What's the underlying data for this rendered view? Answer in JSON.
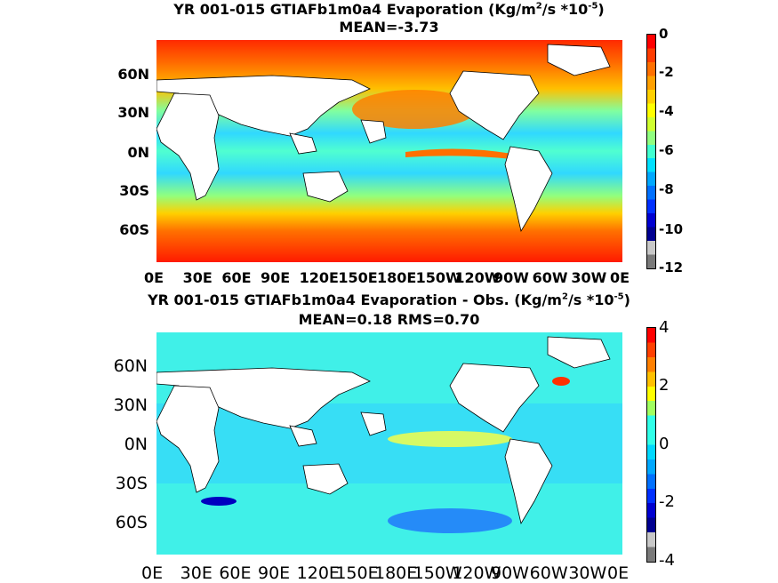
{
  "panels": [
    {
      "title_prefix": "YR 001-015 GTIAFb1m0a4  Evaporation (Kg/m",
      "title_sup1": "2",
      "title_mid": "/s *10",
      "title_sup2": "-5",
      "title_suffix": ")",
      "subtitle": "MEAN=-3.73",
      "lat_labels": [
        "60N",
        "30N",
        "0N",
        "30S",
        "60S"
      ],
      "lon_labels": [
        "0E",
        "30E",
        "60E",
        "90E",
        "120E",
        "150E",
        "180E",
        "150W",
        "120W",
        "90W",
        "60W",
        "30W",
        "0E"
      ],
      "colorbar_labels": [
        "0",
        "-2",
        "-4",
        "-6",
        "-8",
        "-10",
        "-12"
      ],
      "colorbar_colors": [
        "#7a7a7a",
        "#c8c8c8",
        "#000090",
        "#0000d0",
        "#0030ff",
        "#0070ff",
        "#00a8ff",
        "#00e0ff",
        "#40ffd0",
        "#90ff80",
        "#d0ff30",
        "#ffff00",
        "#ffd000",
        "#ffa000",
        "#ff7000",
        "#ff3c00",
        "#ff0000"
      ]
    },
    {
      "title_prefix": "YR 001-015 GTIAFb1m0a4 Evaporation - Obs. (Kg/m",
      "title_sup1": "2",
      "title_mid": "/s *10",
      "title_sup2": "-5",
      "title_suffix": ")",
      "subtitle": "MEAN=0.18   RMS=0.70",
      "lat_labels": [
        "60N",
        "30N",
        "0N",
        "30S",
        "60S"
      ],
      "lon_labels": [
        "0E",
        "30E",
        "60E",
        "90E",
        "120E",
        "150E",
        "180E",
        "150W",
        "120W",
        "90W",
        "60W",
        "30W",
        "0E"
      ],
      "colorbar_labels": [
        "4",
        "2",
        "0",
        "-2",
        "-4"
      ],
      "colorbar_colors": [
        "#7a7a7a",
        "#c8c8c8",
        "#000090",
        "#0000d0",
        "#0030ff",
        "#0070ff",
        "#00a8ff",
        "#00d8ff",
        "#30ffe8",
        "#30ffe8",
        "#a0ff60",
        "#ffff00",
        "#ffc000",
        "#ff8000",
        "#ff4000",
        "#ff0000"
      ]
    }
  ]
}
